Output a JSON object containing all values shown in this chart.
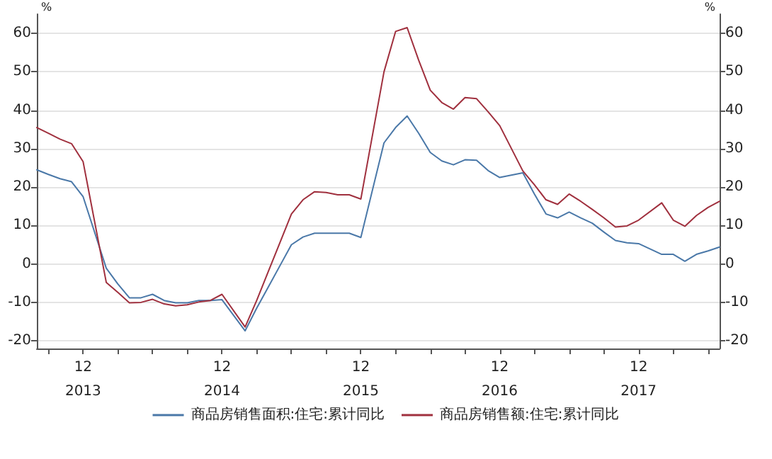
{
  "chart_data": {
    "type": "line",
    "x": [
      "2013-08",
      "2013-09",
      "2013-10",
      "2013-11",
      "2013-12",
      "2014-02",
      "2014-03",
      "2014-04",
      "2014-05",
      "2014-06",
      "2014-07",
      "2014-08",
      "2014-09",
      "2014-10",
      "2014-11",
      "2014-12",
      "2015-02",
      "2015-03",
      "2015-04",
      "2015-05",
      "2015-06",
      "2015-07",
      "2015-08",
      "2015-09",
      "2015-10",
      "2015-11",
      "2015-12",
      "2016-02",
      "2016-03",
      "2016-04",
      "2016-05",
      "2016-06",
      "2016-07",
      "2016-08",
      "2016-09",
      "2016-10",
      "2016-11",
      "2016-12",
      "2017-02",
      "2017-03",
      "2017-04",
      "2017-05",
      "2017-06",
      "2017-07",
      "2017-08",
      "2017-09",
      "2017-10",
      "2017-11",
      "2017-12",
      "2018-02",
      "2018-03",
      "2018-04",
      "2018-05",
      "2018-06",
      "2018-07"
    ],
    "series": [
      {
        "name": "商品房销售面积:住宅:累计同比",
        "color": "#4a78a8",
        "values": [
          24.5,
          23.3,
          22.2,
          21.4,
          17.5,
          -1.1,
          -5.2,
          -8.8,
          -8.8,
          -7.9,
          -9.5,
          -10.1,
          -10.1,
          -9.5,
          -9.5,
          -9.3,
          -17.4,
          -11.5,
          -6,
          -0.5,
          5,
          7,
          8,
          8,
          8,
          8,
          6.9,
          31.5,
          35.5,
          38.5,
          34,
          29,
          26.8,
          25.8,
          27.1,
          27,
          24.3,
          22.5,
          23.7,
          18.2,
          13,
          12,
          13.5,
          12,
          10.6,
          8.3,
          6.1,
          5.5,
          5.3,
          2.5,
          2.5,
          0.7,
          2.5,
          3.4,
          4.4
        ]
      },
      {
        "name": "商品房销售额:住宅:累计同比",
        "color": "#a0303e",
        "values": [
          35.5,
          34,
          32.5,
          31.3,
          26.6,
          -4.8,
          -7.4,
          -10.1,
          -10,
          -9.2,
          -10.4,
          -10.9,
          -10.6,
          -9.9,
          -9.5,
          -7.9,
          -16.4,
          -9.5,
          -2,
          5.5,
          13,
          16.7,
          18.8,
          18.6,
          18,
          18,
          16.9,
          50,
          60.5,
          61.5,
          53,
          45.2,
          42,
          40.3,
          43.3,
          43,
          39.6,
          36,
          24.2,
          20.6,
          16.7,
          15.5,
          18.2,
          16.3,
          14.2,
          12,
          9.6,
          9.9,
          11.4,
          15.9,
          11.4,
          9.8,
          12.6,
          14.7,
          16.3
        ]
      }
    ],
    "xlim": [
      "2013-08",
      "2018-07"
    ],
    "xticks": [
      {
        "value": "2013-09",
        "label": null
      },
      {
        "value": "2013-12",
        "label": "12\n2013"
      },
      {
        "value": "2014-03",
        "label": null
      },
      {
        "value": "2014-06",
        "label": null
      },
      {
        "value": "2014-09",
        "label": null
      },
      {
        "value": "2014-12",
        "label": "12\n2014"
      },
      {
        "value": "2015-03",
        "label": null
      },
      {
        "value": "2015-06",
        "label": null
      },
      {
        "value": "2015-09",
        "label": null
      },
      {
        "value": "2015-12",
        "label": "12\n2015"
      },
      {
        "value": "2016-03",
        "label": null
      },
      {
        "value": "2016-06",
        "label": null
      },
      {
        "value": "2016-09",
        "label": null
      },
      {
        "value": "2016-12",
        "label": "12\n2016"
      },
      {
        "value": "2017-03",
        "label": null
      },
      {
        "value": "2017-06",
        "label": null
      },
      {
        "value": "2017-09",
        "label": null
      },
      {
        "value": "2017-12",
        "label": "12\n2017"
      },
      {
        "value": "2018-03",
        "label": null
      },
      {
        "value": "2018-06",
        "label": null
      }
    ],
    "ylim": [
      -22,
      65
    ],
    "yticks": [
      -20,
      -10,
      0,
      10,
      20,
      30,
      40,
      50,
      60
    ],
    "y2lim": [
      -22,
      65
    ],
    "y2ticks": [
      -20,
      -10,
      0,
      10,
      20,
      30,
      40,
      50,
      60
    ],
    "ylabel": "%",
    "y2label": "%",
    "grid": "y",
    "legend": "bottom"
  }
}
